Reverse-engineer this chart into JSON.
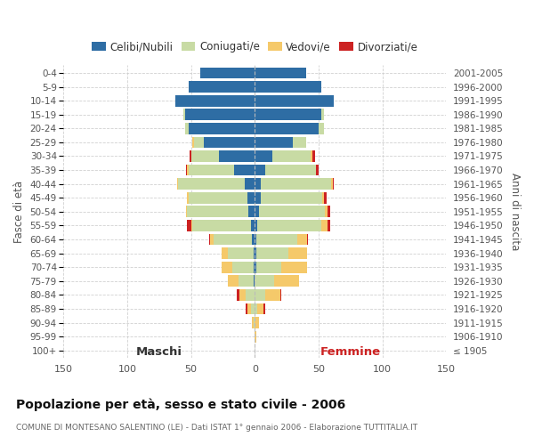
{
  "age_groups": [
    "0-4",
    "5-9",
    "10-14",
    "15-19",
    "20-24",
    "25-29",
    "30-34",
    "35-39",
    "40-44",
    "45-49",
    "50-54",
    "55-59",
    "60-64",
    "65-69",
    "70-74",
    "75-79",
    "80-84",
    "85-89",
    "90-94",
    "95-99",
    "100+"
  ],
  "birth_years": [
    "2001-2005",
    "1996-2000",
    "1991-1995",
    "1986-1990",
    "1981-1985",
    "1976-1980",
    "1971-1975",
    "1966-1970",
    "1961-1965",
    "1956-1960",
    "1951-1955",
    "1946-1950",
    "1941-1945",
    "1936-1940",
    "1931-1935",
    "1926-1930",
    "1921-1925",
    "1916-1920",
    "1911-1915",
    "1906-1910",
    "≤ 1905"
  ],
  "maschi_celibi": [
    43,
    52,
    62,
    55,
    52,
    40,
    28,
    16,
    8,
    6,
    5,
    3,
    2,
    1,
    1,
    1,
    0,
    0,
    0,
    0,
    0
  ],
  "maschi_coniugati": [
    0,
    0,
    0,
    1,
    3,
    8,
    22,
    36,
    52,
    46,
    48,
    46,
    30,
    20,
    17,
    12,
    7,
    3,
    1,
    0,
    0
  ],
  "maschi_vedovi": [
    0,
    0,
    0,
    0,
    0,
    1,
    0,
    1,
    1,
    1,
    1,
    1,
    3,
    5,
    8,
    8,
    5,
    3,
    1,
    0,
    0
  ],
  "maschi_divorziati": [
    0,
    0,
    0,
    0,
    0,
    0,
    1,
    1,
    0,
    0,
    0,
    3,
    1,
    0,
    0,
    0,
    2,
    1,
    0,
    0,
    0
  ],
  "femmine_nubili": [
    40,
    52,
    62,
    52,
    50,
    30,
    14,
    8,
    5,
    5,
    3,
    2,
    1,
    1,
    1,
    0,
    0,
    0,
    0,
    0,
    0
  ],
  "femmine_coniugate": [
    0,
    0,
    0,
    2,
    4,
    10,
    30,
    40,
    55,
    48,
    52,
    50,
    32,
    25,
    20,
    15,
    8,
    2,
    0,
    0,
    0
  ],
  "femmine_vedove": [
    0,
    0,
    0,
    0,
    0,
    0,
    1,
    0,
    1,
    1,
    2,
    5,
    8,
    15,
    20,
    20,
    12,
    5,
    3,
    1,
    0
  ],
  "femmine_divorziate": [
    0,
    0,
    0,
    0,
    0,
    0,
    2,
    2,
    1,
    2,
    2,
    2,
    1,
    0,
    0,
    0,
    1,
    1,
    0,
    0,
    0
  ],
  "colors": {
    "celibi": "#2E6DA4",
    "coniugati": "#C8DBA4",
    "vedovi": "#F5C96A",
    "divorziati": "#CC2222"
  },
  "xlim": 150,
  "title": "Popolazione per età, sesso e stato civile - 2006",
  "subtitle": "COMUNE DI MONTESANO SALENTINO (LE) - Dati ISTAT 1° gennaio 2006 - Elaborazione TUTTITALIA.IT",
  "ylabel": "Fasce di età",
  "ylabel2": "Anni di nascita",
  "label_maschi": "Maschi",
  "label_femmine": "Femmine",
  "legend_labels": [
    "Celibi/Nubili",
    "Coniugati/e",
    "Vedovi/e",
    "Divorziati/e"
  ],
  "background_color": "#ffffff",
  "grid_color": "#cccccc"
}
